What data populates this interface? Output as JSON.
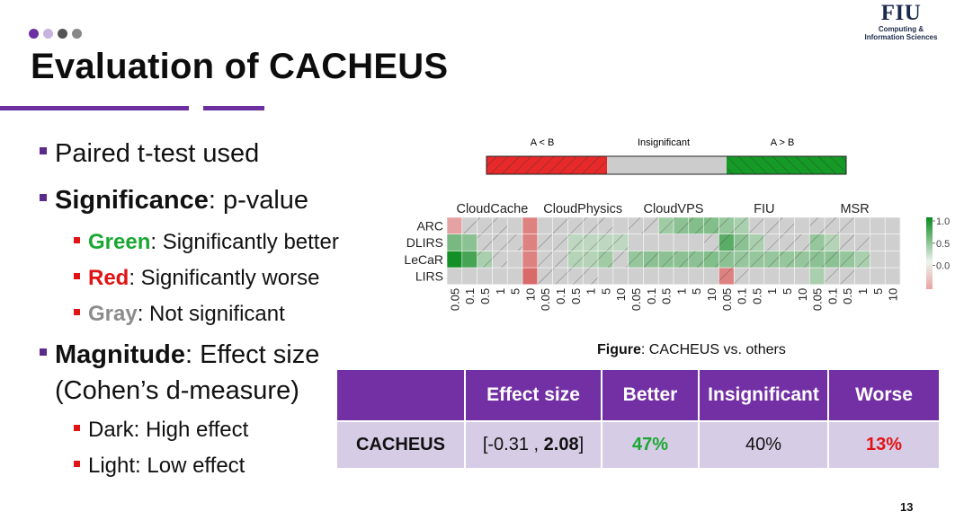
{
  "header": {
    "title": "Evaluation of CACHEUS",
    "logo_text": "FIU",
    "logo_subtitle_1": "Computing &",
    "logo_subtitle_2": "Information Sciences",
    "dot_colors": [
      "#6b2fa0",
      "#c7b3e0",
      "#555555",
      "#888888"
    ]
  },
  "bullets": {
    "paired": "Paired t-test used",
    "significance_label": "Significance",
    "significance_rest": ": p-value",
    "green_label": "Green",
    "green_rest": ": Significantly better",
    "red_label": "Red",
    "red_rest": ": Significantly worse",
    "gray_label": "Gray",
    "gray_rest": ":  Not significant",
    "magnitude_label": "Magnitude",
    "magnitude_rest": ": Effect size",
    "cohen": "(Cohen’s d-measure)",
    "dark": "Dark: High effect",
    "light": "Light: Low effect"
  },
  "legend": {
    "left": "A < B",
    "middle": "Insignificant",
    "right": "A > B",
    "colors": {
      "worse": "#e8292a",
      "insignificant": "#cccccc",
      "better": "#159a26"
    }
  },
  "chart_data": {
    "type": "heatmap",
    "groups": [
      "CloudCache",
      "CloudPhysics",
      "CloudVPS",
      "FIU",
      "MSR"
    ],
    "rows": [
      "ARC",
      "DLIRS",
      "LeCaR",
      "LIRS"
    ],
    "columns": [
      "0.05",
      "0.1",
      "0.5",
      "1",
      "5",
      "10",
      "0.05",
      "0.1",
      "0.5",
      "1",
      "5",
      "10",
      "0.05",
      "0.1",
      "0.5",
      "1",
      "5",
      "10",
      "0.05",
      "0.1",
      "0.5",
      "1",
      "5",
      "10",
      "0.05",
      "0.1",
      "0.5",
      "1",
      "5",
      "10"
    ],
    "colorbar_ticks": [
      "1.0",
      "0.5",
      "0.0"
    ],
    "cells": [
      [
        -0.15,
        0,
        0,
        0,
        0,
        -0.3,
        0,
        0,
        0,
        0,
        0,
        0,
        0,
        0,
        0.25,
        0.35,
        0.4,
        0.4,
        0.3,
        0.2,
        0,
        0,
        0,
        0,
        0,
        0,
        0,
        0,
        0,
        0
      ],
      [
        0.45,
        0.35,
        0,
        0,
        0,
        -0.3,
        0,
        0,
        0.1,
        0.1,
        0.1,
        0.1,
        0,
        0,
        0,
        0,
        0,
        0,
        0.6,
        0.35,
        0.2,
        0,
        0,
        0,
        0.3,
        0.15,
        0,
        0,
        0,
        0
      ],
      [
        0.95,
        0.7,
        0.2,
        0,
        0,
        -0.3,
        0,
        0,
        0.15,
        0.15,
        0.25,
        0,
        0.3,
        0.35,
        0.35,
        0.35,
        0.35,
        0.4,
        0.35,
        0.3,
        0.3,
        0.3,
        0.3,
        0.3,
        0.35,
        0.35,
        0.3,
        0.2,
        0,
        0
      ],
      [
        0,
        0,
        0,
        0,
        0,
        -0.4,
        0,
        0,
        0,
        0,
        0,
        0,
        0,
        0,
        0,
        0,
        0,
        0,
        -0.3,
        0,
        0,
        0,
        0,
        0,
        0.2,
        0,
        0,
        0,
        0,
        0
      ]
    ],
    "hatched": [
      [
        0,
        1,
        1,
        1,
        0,
        0,
        0,
        1,
        1,
        1,
        1,
        0,
        1,
        1,
        1,
        1,
        1,
        1,
        1,
        1,
        1,
        1,
        1,
        0,
        1,
        1,
        1,
        0,
        0,
        0
      ],
      [
        0,
        0,
        1,
        1,
        1,
        0,
        1,
        1,
        1,
        1,
        1,
        1,
        0,
        0,
        0,
        0,
        0,
        1,
        1,
        1,
        1,
        1,
        1,
        1,
        1,
        1,
        1,
        1,
        0,
        0
      ],
      [
        0,
        0,
        1,
        1,
        0,
        0,
        1,
        1,
        1,
        1,
        1,
        1,
        1,
        1,
        1,
        1,
        1,
        1,
        1,
        1,
        1,
        1,
        1,
        1,
        1,
        1,
        1,
        1,
        0,
        0
      ],
      [
        0,
        0,
        0,
        0,
        0,
        0,
        1,
        1,
        1,
        1,
        0,
        0,
        0,
        0,
        0,
        0,
        0,
        0,
        1,
        1,
        0,
        0,
        0,
        0,
        0,
        1,
        1,
        0,
        0,
        0
      ]
    ]
  },
  "figure": {
    "caption_label": "Figure",
    "caption_rest": ": CACHEUS vs. others"
  },
  "table": {
    "headers": [
      "",
      "Effect size",
      "Better",
      "Insignificant",
      "Worse"
    ],
    "row": {
      "name": "CACHEUS",
      "effect_open": "[-0.31 , ",
      "effect_bold": "2.08",
      "effect_close": "]",
      "better": "47%",
      "insignificant": "40%",
      "worse": "13%"
    },
    "colors": {
      "better": "#1aa832",
      "worse": "#e01414"
    }
  },
  "footer": {
    "page": "13"
  }
}
